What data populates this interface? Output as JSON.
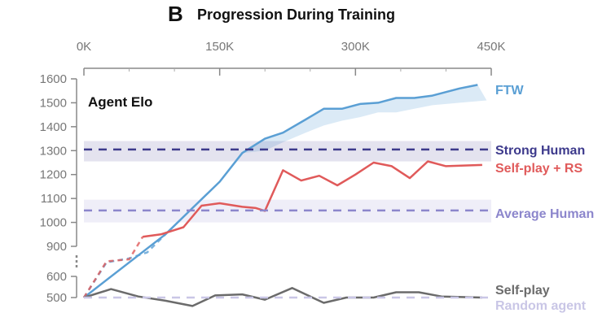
{
  "panel_letter": "B",
  "chart_data": {
    "type": "line",
    "title": "Progression During Training",
    "xlabel": "",
    "ylabel": "Agent Elo",
    "x_ticks": [
      "0K",
      "150K",
      "300K",
      "450K"
    ],
    "y_ticks": [
      1600,
      1500,
      1400,
      1300,
      1200,
      1100,
      1000,
      900,
      600,
      500
    ],
    "xlim": [
      0,
      450000
    ],
    "y_axis_break": [
      600,
      900
    ],
    "grid": false,
    "series": [
      {
        "name": "FTW",
        "color": "#5a9fd4",
        "style": "solid",
        "points": [
          [
            0,
            500
          ],
          [
            90000,
            950
          ],
          [
            120000,
            1060
          ],
          [
            150000,
            1170
          ],
          [
            175000,
            1290
          ],
          [
            200000,
            1350
          ],
          [
            220000,
            1375
          ],
          [
            245000,
            1430
          ],
          [
            265000,
            1475
          ],
          [
            285000,
            1475
          ],
          [
            305000,
            1495
          ],
          [
            325000,
            1500
          ],
          [
            345000,
            1520
          ],
          [
            365000,
            1520
          ],
          [
            385000,
            1530
          ],
          [
            415000,
            1560
          ],
          [
            435000,
            1575
          ]
        ],
        "dashed_points": [
          [
            0,
            500
          ],
          [
            25000,
            740
          ],
          [
            50000,
            780
          ],
          [
            70000,
            840
          ],
          [
            90000,
            950
          ]
        ],
        "band_lower": [
          1290,
          1300,
          1335,
          1375,
          1405,
          1425,
          1440,
          1460,
          1460,
          1475,
          1490,
          1500,
          1510
        ],
        "band_x": [
          175000,
          200000,
          220000,
          245000,
          265000,
          285000,
          305000,
          325000,
          345000,
          365000,
          385000,
          415000,
          445000
        ]
      },
      {
        "name": "Self-play + RS",
        "color": "#e05a5a",
        "style": "solid",
        "points": [
          [
            65000,
            940
          ],
          [
            85000,
            950
          ],
          [
            110000,
            980
          ],
          [
            130000,
            1070
          ],
          [
            150000,
            1080
          ],
          [
            175000,
            1065
          ],
          [
            190000,
            1060
          ],
          [
            200000,
            1048
          ],
          [
            220000,
            1218
          ],
          [
            240000,
            1175
          ],
          [
            260000,
            1195
          ],
          [
            280000,
            1155
          ],
          [
            300000,
            1200
          ],
          [
            320000,
            1250
          ],
          [
            340000,
            1235
          ],
          [
            360000,
            1185
          ],
          [
            380000,
            1255
          ],
          [
            400000,
            1235
          ],
          [
            440000,
            1240
          ]
        ],
        "dashed_points": [
          [
            0,
            500
          ],
          [
            25000,
            750
          ],
          [
            50000,
            770
          ],
          [
            65000,
            940
          ]
        ]
      },
      {
        "name": "Self-play",
        "color": "#6b6b6b",
        "style": "solid",
        "points": [
          [
            0,
            500
          ],
          [
            30000,
            540
          ],
          [
            60000,
            505
          ],
          [
            90000,
            485
          ],
          [
            120000,
            460
          ],
          [
            145000,
            510
          ],
          [
            175000,
            515
          ],
          [
            200000,
            490
          ],
          [
            230000,
            545
          ],
          [
            265000,
            475
          ],
          [
            290000,
            500
          ],
          [
            320000,
            500
          ],
          [
            345000,
            525
          ],
          [
            370000,
            525
          ],
          [
            395000,
            505
          ],
          [
            440000,
            500
          ]
        ]
      },
      {
        "name": "Random agent",
        "color": "#c9c6e6",
        "style": "dashed",
        "constant": 500
      },
      {
        "name": "Strong Human",
        "color": "#3d3a8c",
        "style": "dashed",
        "constant": 1305,
        "band": [
          1255,
          1340
        ]
      },
      {
        "name": "Average Human",
        "color": "#8c86cc",
        "style": "dashed",
        "constant": 1050,
        "band": [
          1000,
          1095
        ]
      }
    ]
  }
}
